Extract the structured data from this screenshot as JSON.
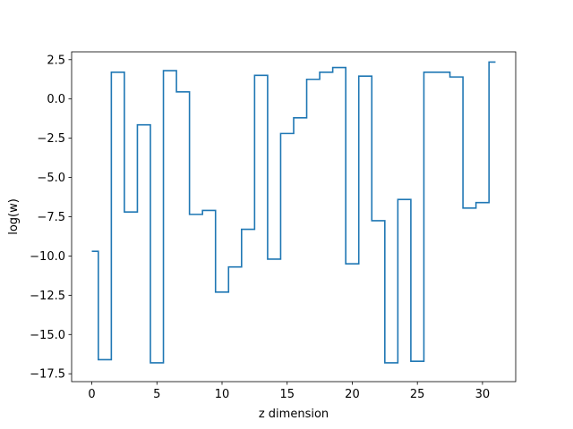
{
  "chart_data": {
    "type": "line",
    "drawstyle": "steps-mid",
    "xlabel": "z dimension",
    "ylabel": "log(w)",
    "xlim": [
      -1.55,
      32.55
    ],
    "ylim": [
      -18.0,
      3.0
    ],
    "xticks": [
      0,
      5,
      10,
      15,
      20,
      25,
      30
    ],
    "yticks": [
      -17.5,
      -15.0,
      -12.5,
      -10.0,
      -7.5,
      -5.0,
      -2.5,
      0.0,
      2.5
    ],
    "grid": false,
    "color": "#1f77b4",
    "series": [
      {
        "name": "",
        "x": [
          0,
          1,
          2,
          3,
          4,
          5,
          6,
          7,
          8,
          9,
          10,
          11,
          12,
          13,
          14,
          15,
          16,
          17,
          18,
          19,
          20,
          21,
          22,
          23,
          24,
          25,
          26,
          27,
          28,
          29,
          30,
          31
        ],
        "y": [
          -9.7,
          -16.6,
          1.7,
          -7.2,
          -1.65,
          -16.8,
          1.8,
          0.45,
          -7.35,
          -7.1,
          -12.3,
          -10.7,
          -8.3,
          1.5,
          -10.2,
          -2.2,
          -1.2,
          1.25,
          1.7,
          2.0,
          -10.5,
          1.45,
          -7.75,
          -16.8,
          -6.4,
          -16.7,
          1.7,
          1.7,
          1.4,
          -6.95,
          -6.6,
          2.35
        ]
      }
    ]
  }
}
